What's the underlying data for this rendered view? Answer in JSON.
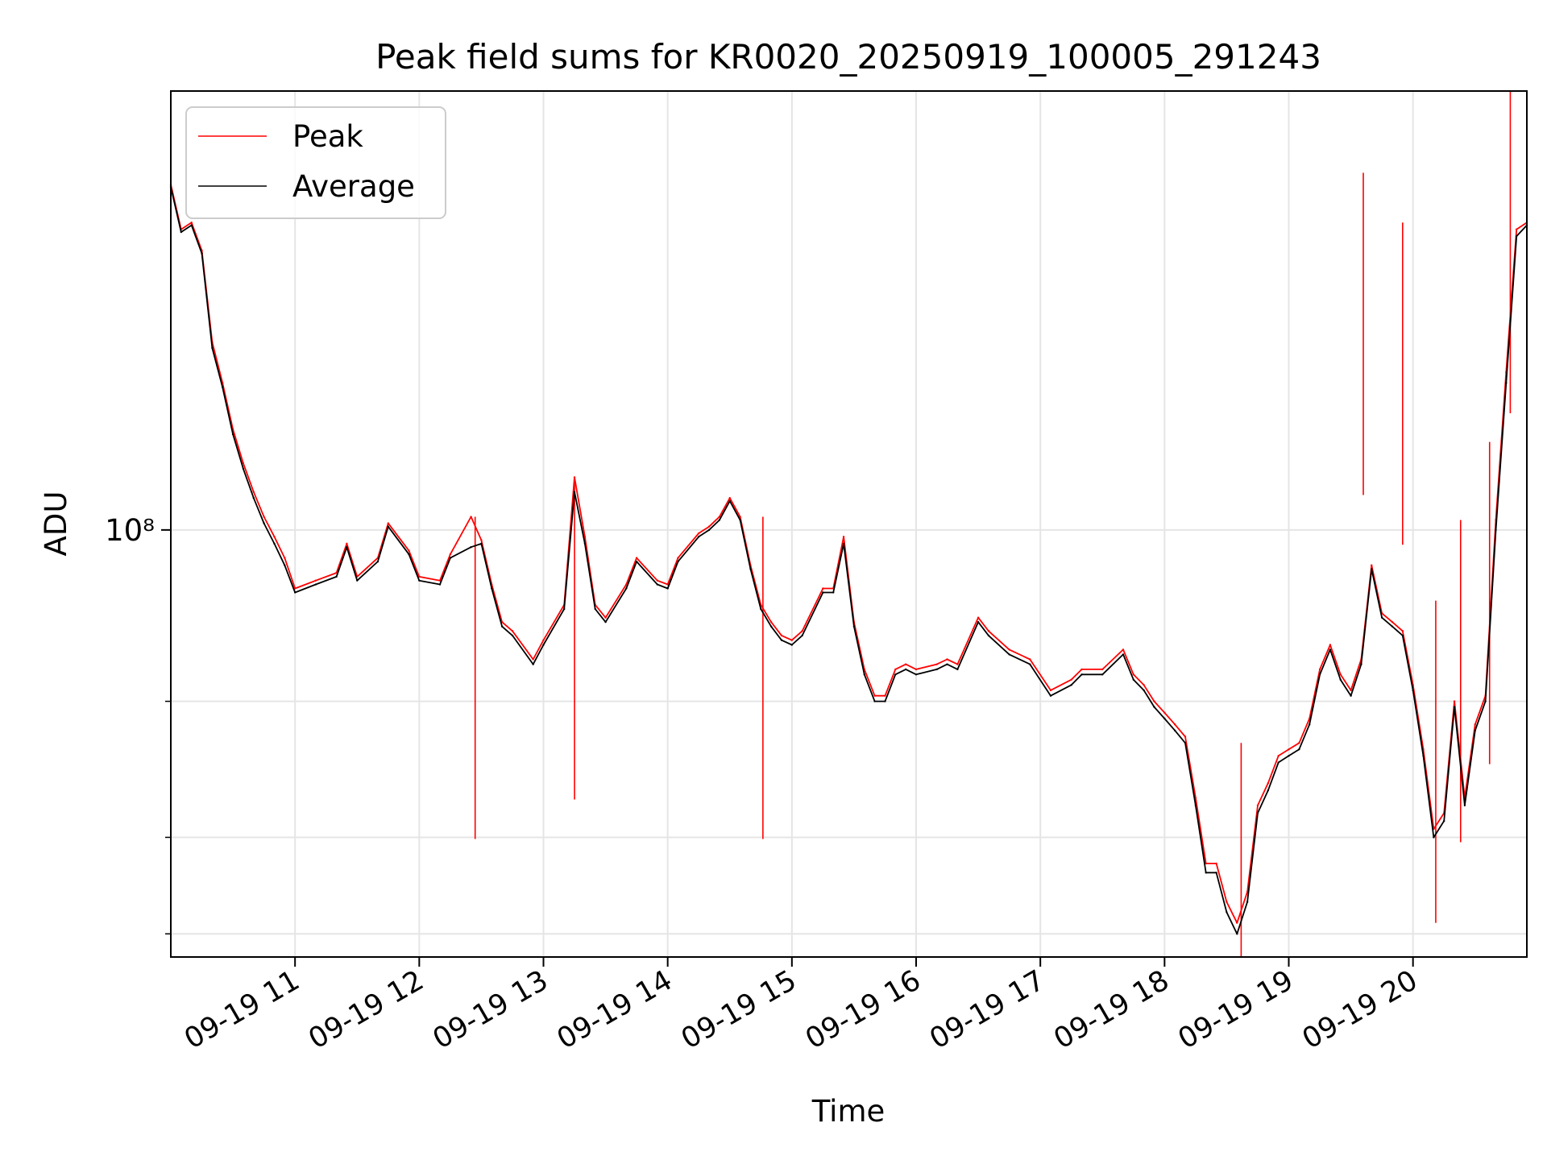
{
  "chart_data": {
    "type": "line",
    "title": "Peak field sums for KR0020_20250919_100005_291243",
    "xlabel": "Time",
    "ylabel": "ADU",
    "yscale": "log",
    "grid": true,
    "legend_position": "upper-left",
    "x_ticks": [
      "09-19 11",
      "09-19 12",
      "09-19 13",
      "09-19 14",
      "09-19 15",
      "09-19 16",
      "09-19 17",
      "09-19 18",
      "09-19 19",
      "09-19 20"
    ],
    "x_range": [
      "2025-09-19 10:00",
      "2025-09-19 20:55"
    ],
    "y_range": [
      28000000,
      370000000
    ],
    "y_major_tick_label": "10⁸",
    "y_major_tick_value": 100000000,
    "y_minor_ticks": [
      30000000,
      40000000,
      60000000
    ],
    "colors": {
      "peak": "#ff0000",
      "average": "#000000",
      "grid": "#e5e5e5"
    },
    "series": [
      {
        "name": "Peak",
        "color": "#ff0000",
        "points": [
          [
            "10:00",
            280000000
          ],
          [
            "10:05",
            245000000
          ],
          [
            "10:10",
            250000000
          ],
          [
            "10:15",
            230000000
          ],
          [
            "10:20",
            175000000
          ],
          [
            "10:25",
            155000000
          ],
          [
            "10:30",
            135000000
          ],
          [
            "10:35",
            122000000
          ],
          [
            "10:40",
            112000000
          ],
          [
            "10:45",
            104000000
          ],
          [
            "10:50",
            98000000
          ],
          [
            "10:55",
            92000000
          ],
          [
            "11:00",
            84000000
          ],
          [
            "11:10",
            86000000
          ],
          [
            "11:20",
            88000000
          ],
          [
            "11:25",
            96000000
          ],
          [
            "11:30",
            87000000
          ],
          [
            "11:40",
            92000000
          ],
          [
            "11:45",
            102000000
          ],
          [
            "11:55",
            94000000
          ],
          [
            "12:00",
            87000000
          ],
          [
            "12:10",
            86000000
          ],
          [
            "12:15",
            93000000
          ],
          [
            "12:25",
            104000000
          ],
          [
            "12:30",
            97000000
          ],
          [
            "12:35",
            85000000
          ],
          [
            "12:40",
            76000000
          ],
          [
            "12:45",
            74000000
          ],
          [
            "12:55",
            68000000
          ],
          [
            "13:00",
            72000000
          ],
          [
            "13:10",
            80000000
          ],
          [
            "13:15",
            117000000
          ],
          [
            "13:20",
            98000000
          ],
          [
            "13:25",
            80000000
          ],
          [
            "13:30",
            77000000
          ],
          [
            "13:40",
            85000000
          ],
          [
            "13:45",
            92000000
          ],
          [
            "13:55",
            86000000
          ],
          [
            "14:00",
            85000000
          ],
          [
            "14:05",
            92000000
          ],
          [
            "14:15",
            99000000
          ],
          [
            "14:20",
            101000000
          ],
          [
            "14:25",
            104000000
          ],
          [
            "14:30",
            110000000
          ],
          [
            "14:35",
            104000000
          ],
          [
            "14:40",
            90000000
          ],
          [
            "14:45",
            80000000
          ],
          [
            "14:50",
            76000000
          ],
          [
            "14:55",
            73000000
          ],
          [
            "15:00",
            72000000
          ],
          [
            "15:05",
            74000000
          ],
          [
            "15:15",
            84000000
          ],
          [
            "15:20",
            84000000
          ],
          [
            "15:25",
            98000000
          ],
          [
            "15:30",
            76000000
          ],
          [
            "15:35",
            66000000
          ],
          [
            "15:40",
            61000000
          ],
          [
            "15:45",
            61000000
          ],
          [
            "15:50",
            66000000
          ],
          [
            "15:55",
            67000000
          ],
          [
            "16:00",
            66000000
          ],
          [
            "16:10",
            67000000
          ],
          [
            "16:15",
            68000000
          ],
          [
            "16:20",
            67000000
          ],
          [
            "16:30",
            77000000
          ],
          [
            "16:35",
            74000000
          ],
          [
            "16:45",
            70000000
          ],
          [
            "16:55",
            68000000
          ],
          [
            "17:05",
            62000000
          ],
          [
            "17:15",
            64000000
          ],
          [
            "17:20",
            66000000
          ],
          [
            "17:30",
            66000000
          ],
          [
            "17:40",
            70000000
          ],
          [
            "17:45",
            65000000
          ],
          [
            "17:50",
            63000000
          ],
          [
            "17:55",
            60000000
          ],
          [
            "18:00",
            58000000
          ],
          [
            "18:05",
            56000000
          ],
          [
            "18:10",
            54000000
          ],
          [
            "18:15",
            45000000
          ],
          [
            "18:20",
            37000000
          ],
          [
            "18:25",
            37000000
          ],
          [
            "18:30",
            33000000
          ],
          [
            "18:35",
            31000000
          ],
          [
            "18:40",
            34000000
          ],
          [
            "18:45",
            44000000
          ],
          [
            "18:50",
            47000000
          ],
          [
            "18:55",
            51000000
          ],
          [
            "19:00",
            52000000
          ],
          [
            "19:05",
            53000000
          ],
          [
            "19:10",
            57000000
          ],
          [
            "19:15",
            66000000
          ],
          [
            "19:20",
            71000000
          ],
          [
            "19:25",
            65000000
          ],
          [
            "19:30",
            62000000
          ],
          [
            "19:35",
            68000000
          ],
          [
            "19:40",
            90000000
          ],
          [
            "19:45",
            78000000
          ],
          [
            "19:50",
            76000000
          ],
          [
            "19:55",
            74000000
          ],
          [
            "20:00",
            63000000
          ],
          [
            "20:05",
            52000000
          ],
          [
            "20:10",
            41000000
          ],
          [
            "20:15",
            43000000
          ],
          [
            "20:20",
            60000000
          ],
          [
            "20:25",
            45000000
          ],
          [
            "20:30",
            56000000
          ],
          [
            "20:35",
            61000000
          ],
          [
            "20:40",
            103000000
          ],
          [
            "20:45",
            160000000
          ],
          [
            "20:50",
            245000000
          ],
          [
            "20:55",
            250000000
          ]
        ],
        "spikes": [
          [
            "12:27",
            104000000
          ],
          [
            "13:15",
            117000000
          ],
          [
            "14:46",
            104000000
          ],
          [
            "18:37",
            53000000
          ],
          [
            "19:36",
            290000000
          ],
          [
            "19:55",
            250000000
          ],
          [
            "20:11",
            81000000
          ],
          [
            "20:23",
            103000000
          ],
          [
            "20:37",
            130000000
          ],
          [
            "20:47",
            370000000
          ]
        ]
      },
      {
        "name": "Average",
        "color": "#000000",
        "points": [
          [
            "10:00",
            278000000
          ],
          [
            "10:05",
            243000000
          ],
          [
            "10:10",
            248000000
          ],
          [
            "10:15",
            228000000
          ],
          [
            "10:20",
            172000000
          ],
          [
            "10:25",
            153000000
          ],
          [
            "10:30",
            133000000
          ],
          [
            "10:35",
            120000000
          ],
          [
            "10:40",
            110000000
          ],
          [
            "10:45",
            102000000
          ],
          [
            "10:50",
            96000000
          ],
          [
            "10:55",
            90000000
          ],
          [
            "11:00",
            83000000
          ],
          [
            "11:10",
            85000000
          ],
          [
            "11:20",
            87000000
          ],
          [
            "11:25",
            95000000
          ],
          [
            "11:30",
            86000000
          ],
          [
            "11:40",
            91000000
          ],
          [
            "11:45",
            101000000
          ],
          [
            "11:55",
            93000000
          ],
          [
            "12:00",
            86000000
          ],
          [
            "12:10",
            85000000
          ],
          [
            "12:15",
            92000000
          ],
          [
            "12:25",
            95000000
          ],
          [
            "12:30",
            96000000
          ],
          [
            "12:35",
            84000000
          ],
          [
            "12:40",
            75000000
          ],
          [
            "12:45",
            73000000
          ],
          [
            "12:55",
            67000000
          ],
          [
            "13:00",
            71000000
          ],
          [
            "13:10",
            79000000
          ],
          [
            "13:15",
            112000000
          ],
          [
            "13:20",
            96000000
          ],
          [
            "13:25",
            79000000
          ],
          [
            "13:30",
            76000000
          ],
          [
            "13:40",
            84000000
          ],
          [
            "13:45",
            91000000
          ],
          [
            "13:55",
            85000000
          ],
          [
            "14:00",
            84000000
          ],
          [
            "14:05",
            91000000
          ],
          [
            "14:15",
            98000000
          ],
          [
            "14:20",
            100000000
          ],
          [
            "14:25",
            103000000
          ],
          [
            "14:30",
            109000000
          ],
          [
            "14:35",
            103000000
          ],
          [
            "14:40",
            89000000
          ],
          [
            "14:45",
            79000000
          ],
          [
            "14:50",
            75000000
          ],
          [
            "14:55",
            72000000
          ],
          [
            "15:00",
            71000000
          ],
          [
            "15:05",
            73000000
          ],
          [
            "15:15",
            83000000
          ],
          [
            "15:20",
            83000000
          ],
          [
            "15:25",
            96000000
          ],
          [
            "15:30",
            75000000
          ],
          [
            "15:35",
            65000000
          ],
          [
            "15:40",
            60000000
          ],
          [
            "15:45",
            60000000
          ],
          [
            "15:50",
            65000000
          ],
          [
            "15:55",
            66000000
          ],
          [
            "16:00",
            65000000
          ],
          [
            "16:10",
            66000000
          ],
          [
            "16:15",
            67000000
          ],
          [
            "16:20",
            66000000
          ],
          [
            "16:30",
            76000000
          ],
          [
            "16:35",
            73000000
          ],
          [
            "16:45",
            69000000
          ],
          [
            "16:55",
            67000000
          ],
          [
            "17:05",
            61000000
          ],
          [
            "17:15",
            63000000
          ],
          [
            "17:20",
            65000000
          ],
          [
            "17:30",
            65000000
          ],
          [
            "17:40",
            69000000
          ],
          [
            "17:45",
            64000000
          ],
          [
            "17:50",
            62000000
          ],
          [
            "17:55",
            59000000
          ],
          [
            "18:00",
            57000000
          ],
          [
            "18:05",
            55000000
          ],
          [
            "18:10",
            53000000
          ],
          [
            "18:15",
            44000000
          ],
          [
            "18:20",
            36000000
          ],
          [
            "18:25",
            36000000
          ],
          [
            "18:30",
            32000000
          ],
          [
            "18:35",
            30000000
          ],
          [
            "18:40",
            33000000
          ],
          [
            "18:45",
            43000000
          ],
          [
            "18:50",
            46000000
          ],
          [
            "18:55",
            50000000
          ],
          [
            "19:00",
            51000000
          ],
          [
            "19:05",
            52000000
          ],
          [
            "19:10",
            56000000
          ],
          [
            "19:15",
            65000000
          ],
          [
            "19:20",
            70000000
          ],
          [
            "19:25",
            64000000
          ],
          [
            "19:30",
            61000000
          ],
          [
            "19:35",
            67000000
          ],
          [
            "19:40",
            89000000
          ],
          [
            "19:45",
            77000000
          ],
          [
            "19:50",
            75000000
          ],
          [
            "19:55",
            73000000
          ],
          [
            "20:00",
            62000000
          ],
          [
            "20:05",
            51000000
          ],
          [
            "20:10",
            40000000
          ],
          [
            "20:15",
            42000000
          ],
          [
            "20:20",
            59000000
          ],
          [
            "20:25",
            44000000
          ],
          [
            "20:30",
            55000000
          ],
          [
            "20:35",
            60000000
          ],
          [
            "20:40",
            100000000
          ],
          [
            "20:45",
            155000000
          ],
          [
            "20:50",
            240000000
          ],
          [
            "20:55",
            248000000
          ]
        ]
      }
    ]
  }
}
